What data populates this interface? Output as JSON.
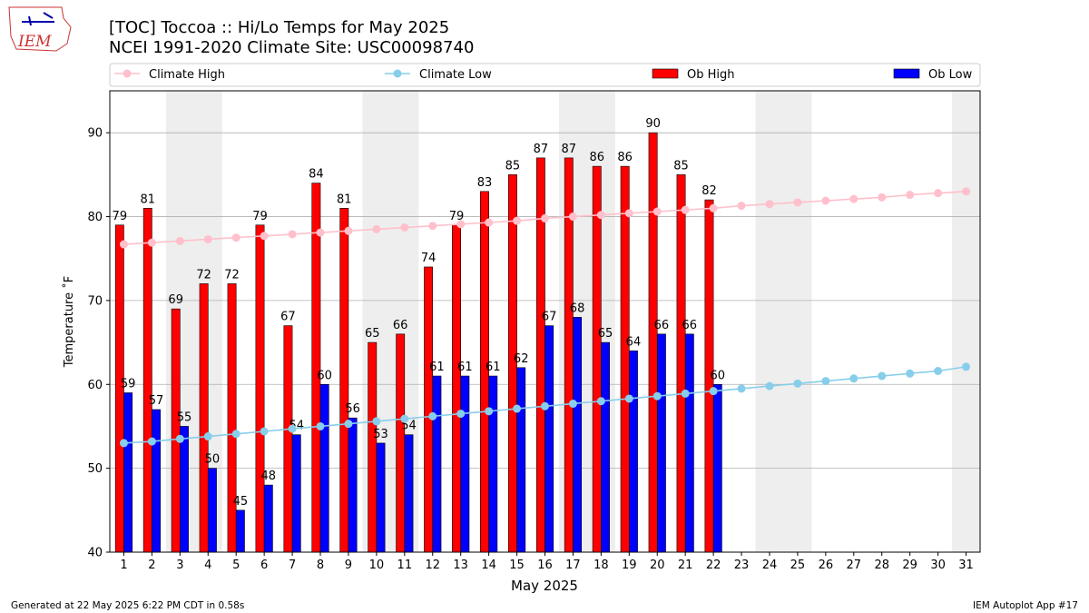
{
  "chart_data": {
    "type": "bar_line",
    "title": "[TOC] Toccoa :: Hi/Lo Temps for May 2025",
    "subtitle": "NCEI 1991-2020 Climate Site: USC00098740",
    "xlabel": "May 2025",
    "ylabel": "Temperature ˚F",
    "logo": "IEM",
    "footer_left": "Generated at 22 May 2025 6:22 PM CDT in 0.58s",
    "footer_right": "IEM Autoplot App #17",
    "x": [
      1,
      2,
      3,
      4,
      5,
      6,
      7,
      8,
      9,
      10,
      11,
      12,
      13,
      14,
      15,
      16,
      17,
      18,
      19,
      20,
      21,
      22,
      23,
      24,
      25,
      26,
      27,
      28,
      29,
      30,
      31
    ],
    "xlim": [
      0.5,
      31.5
    ],
    "xticks": [
      1,
      2,
      3,
      4,
      5,
      6,
      7,
      8,
      9,
      10,
      11,
      12,
      13,
      14,
      15,
      16,
      17,
      18,
      19,
      20,
      21,
      22,
      23,
      24,
      25,
      26,
      27,
      28,
      29,
      30,
      31
    ],
    "ylim": [
      40,
      95
    ],
    "yticks": [
      40,
      50,
      60,
      70,
      80,
      90
    ],
    "grid": true,
    "shaded": [
      [
        2.5,
        4.5
      ],
      [
        9.5,
        11.5
      ],
      [
        16.5,
        18.5
      ],
      [
        23.5,
        25.5
      ],
      [
        30.5,
        31.5
      ]
    ],
    "series": [
      {
        "name": "Climate High",
        "kind": "line",
        "color": "#ffc0cb",
        "values": [
          76.7,
          76.9,
          77.1,
          77.3,
          77.5,
          77.7,
          77.9,
          78.1,
          78.3,
          78.5,
          78.7,
          78.9,
          79.1,
          79.3,
          79.5,
          79.8,
          80.0,
          80.2,
          80.4,
          80.6,
          80.8,
          81.0,
          81.3,
          81.5,
          81.7,
          81.9,
          82.1,
          82.3,
          82.6,
          82.8,
          83.0
        ]
      },
      {
        "name": "Climate Low",
        "kind": "line",
        "color": "#87ceeb",
        "values": [
          53.0,
          53.2,
          53.5,
          53.8,
          54.1,
          54.4,
          54.7,
          55.0,
          55.3,
          55.6,
          55.9,
          56.2,
          56.5,
          56.8,
          57.1,
          57.4,
          57.7,
          58.0,
          58.3,
          58.6,
          58.9,
          59.2,
          59.5,
          59.8,
          60.1,
          60.4,
          60.7,
          61.0,
          61.3,
          61.6,
          62.1
        ]
      },
      {
        "name": "Ob High",
        "kind": "bar",
        "color": "#ff0000",
        "values": [
          79,
          81,
          69,
          72,
          72,
          79,
          67,
          84,
          81,
          65,
          66,
          74,
          79,
          83,
          85,
          87,
          87,
          86,
          86,
          90,
          85,
          82,
          null,
          null,
          null,
          null,
          null,
          null,
          null,
          null,
          null
        ]
      },
      {
        "name": "Ob Low",
        "kind": "bar",
        "color": "#0000ff",
        "values": [
          59,
          57,
          55,
          50,
          45,
          48,
          54,
          60,
          56,
          53,
          54,
          61,
          61,
          61,
          62,
          67,
          68,
          65,
          64,
          66,
          66,
          60,
          null,
          null,
          null,
          null,
          null,
          null,
          null,
          null,
          null
        ]
      }
    ]
  }
}
